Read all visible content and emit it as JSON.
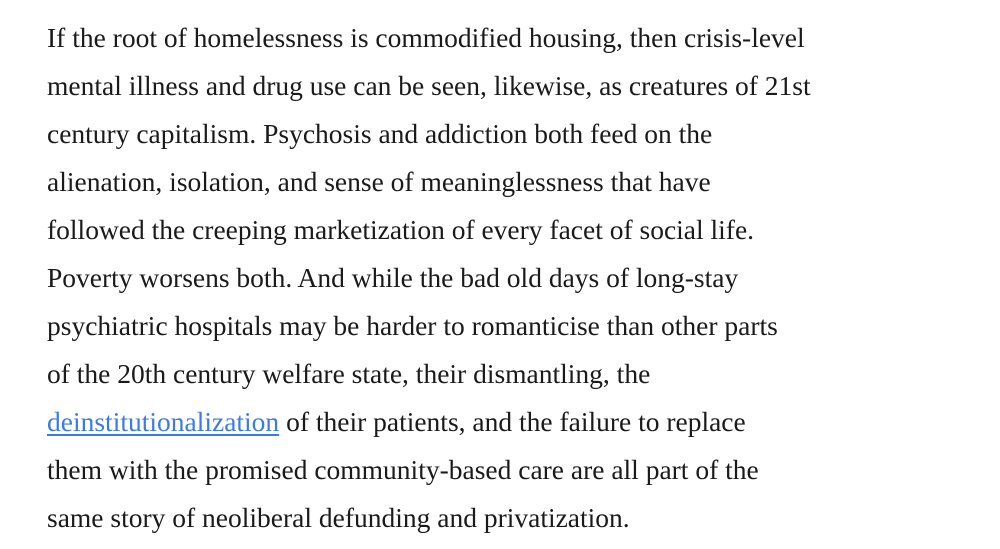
{
  "article": {
    "lines": [
      {
        "text": "If the root of homelessness is commodified housing, then crisis-level"
      },
      {
        "text": "mental illness and drug use can be seen, likewise, as creatures of 21st"
      },
      {
        "text": "century capitalism. Psychosis and addiction both feed on the"
      },
      {
        "text": "alienation, isolation, and sense of meaninglessness that have"
      },
      {
        "text": "followed the creeping marketization of every facet of social life."
      },
      {
        "text": "Poverty worsens both. And while the bad old days of long-stay"
      },
      {
        "text": "psychiatric hospitals may be harder to romanticise than other parts"
      },
      {
        "text": "of the 20th century welfare state, their dismantling, the"
      },
      {
        "link": "deinstitutionalization",
        "text": " of their patients, and the failure to replace"
      },
      {
        "text": "them with the promised community-based care are all part of the"
      },
      {
        "text": "same story of neoliberal defunding and privatization."
      }
    ],
    "link_color": "#3b7be8"
  }
}
